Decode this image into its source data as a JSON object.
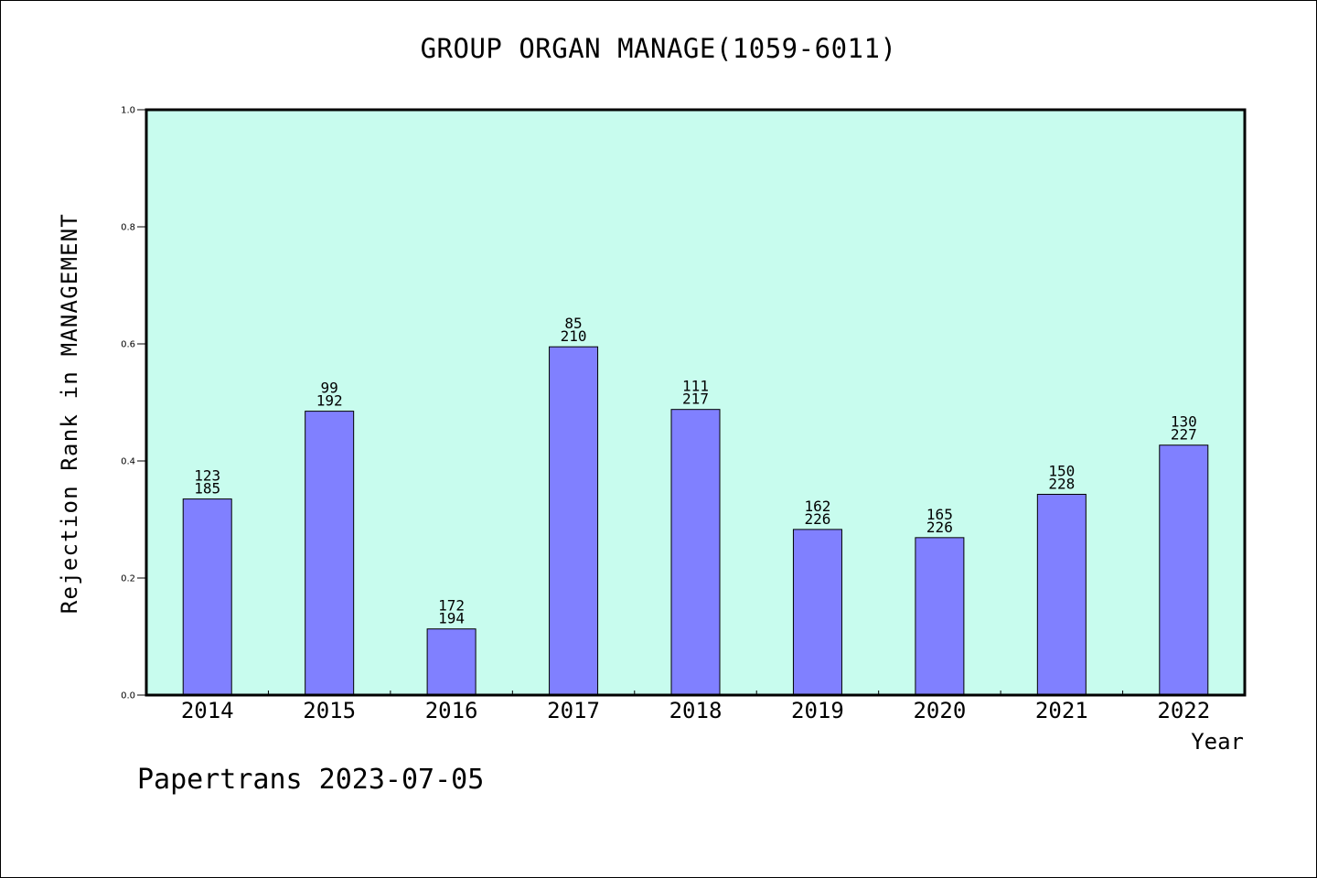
{
  "chart_data": {
    "type": "bar",
    "title": "GROUP ORGAN MANAGE(1059-6011)",
    "xlabel": "Year",
    "ylabel": "Rejection Rank in MANAGEMENT",
    "ylim": [
      0,
      1.0
    ],
    "yticks": [
      "0.0",
      "0.2",
      "0.4",
      "0.6",
      "0.8",
      "1.0"
    ],
    "ytick_values": [
      0.0,
      0.2,
      0.4,
      0.6,
      0.8,
      1.0
    ],
    "categories": [
      "2014",
      "2015",
      "2016",
      "2017",
      "2018",
      "2019",
      "2020",
      "2021",
      "2022"
    ],
    "values": [
      0.335,
      0.485,
      0.113,
      0.595,
      0.488,
      0.283,
      0.269,
      0.343,
      0.427
    ],
    "labels_top": [
      "123",
      "99",
      "172",
      "85",
      "111",
      "162",
      "165",
      "150",
      "130"
    ],
    "labels_bottom": [
      "185",
      "192",
      "194",
      "210",
      "217",
      "226",
      "226",
      "228",
      "227"
    ],
    "grid": false,
    "colors": {
      "plot_background": "#c8fcee",
      "bar_fill": "#8080ff",
      "bar_stroke": "#000000"
    }
  },
  "footer": "Papertrans 2023-07-05"
}
